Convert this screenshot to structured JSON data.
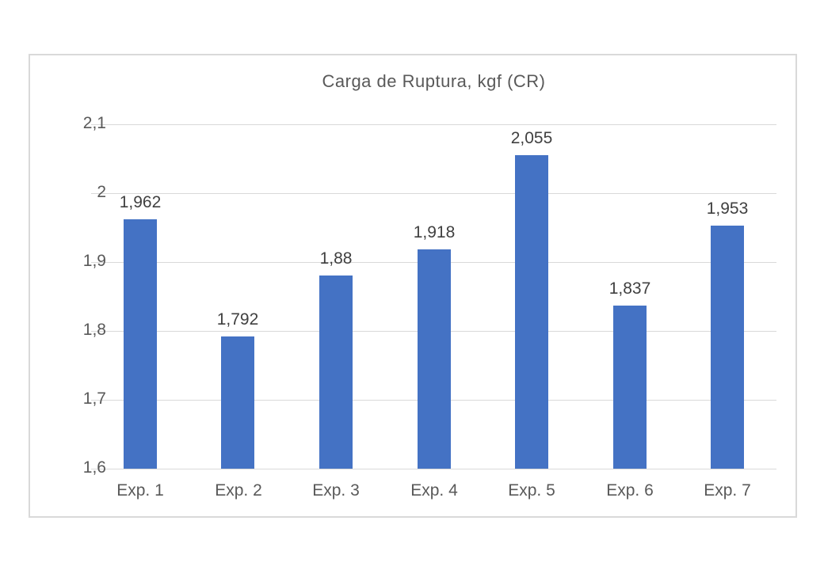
{
  "chart_data": {
    "type": "bar",
    "title": "Carga de Ruptura, kgf (CR)",
    "categories": [
      "Exp. 1",
      "Exp. 2",
      "Exp. 3",
      "Exp. 4",
      "Exp. 5",
      "Exp. 6",
      "Exp. 7"
    ],
    "values": [
      1.962,
      1.792,
      1.88,
      1.918,
      2.055,
      1.837,
      1.953
    ],
    "value_labels": [
      "1,962",
      "1,792",
      "1,88",
      "1,918",
      "2,055",
      "1,837",
      "1,953"
    ],
    "xlabel": "",
    "ylabel": "",
    "ylim": [
      1.6,
      2.1
    ],
    "yticks": [
      2.1,
      2.0,
      1.9,
      1.8,
      1.7,
      1.6
    ],
    "ytick_labels": [
      "2,1",
      "2",
      "1,9",
      "1,8",
      "1,7",
      "1,6"
    ],
    "decimal_separator": ",",
    "grid": true,
    "legend": false,
    "bar_color": "#4472C4",
    "gridline_color": "#D9D9D9",
    "axis_text_color": "#595959",
    "title_color": "#595959",
    "data_label_color": "#404040",
    "border_color": "#D9D9D9"
  }
}
